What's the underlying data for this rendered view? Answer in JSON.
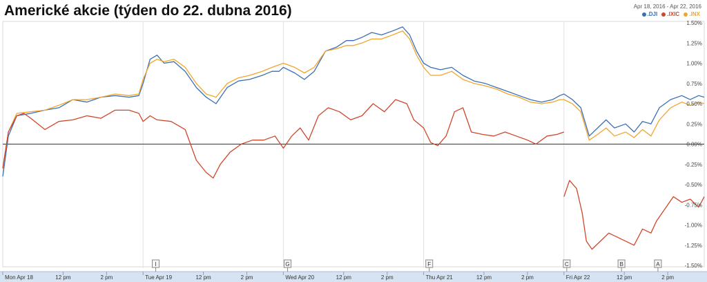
{
  "title": "Americké akcie (týden do 22. dubna 2016)",
  "date_range": "Apr 18, 2016  -  Apr 22, 2016",
  "legend": [
    {
      "label": ".DJI",
      "color": "#3a6fb5"
    },
    {
      "label": ".IXIC",
      "color": "#d0462a"
    },
    {
      "label": ".INX",
      "color": "#f2a52b"
    }
  ],
  "colors": {
    "dji": "#3a6fb5",
    "ixic": "#d0462a",
    "inx": "#f2a52b",
    "axis_bar": "#d6e3f2"
  },
  "chart_data": {
    "type": "line",
    "title": "Americké akcie (týden do 22. dubna 2016)",
    "ylim": [
      -1.5,
      1.5
    ],
    "yticks": [
      1.5,
      1.25,
      1.0,
      0.75,
      0.5,
      0.25,
      0.0,
      -0.25,
      -0.5,
      -0.75,
      -1.0,
      -1.25,
      -1.5
    ],
    "ytick_labels": [
      "1.50%",
      "1.25%",
      "1.00%",
      "0.75%",
      "0.50%",
      "0.25%",
      "0.00%",
      "-0.25%",
      "-0.50%",
      "-0.75%",
      "-1.00%",
      "-1.25%",
      "-1.50%"
    ],
    "xlim": [
      0,
      5
    ],
    "xticks": [
      {
        "x": 0.0,
        "label": "Mon Apr 18"
      },
      {
        "x": 0.43,
        "label": "12 pm"
      },
      {
        "x": 0.74,
        "label": "2 pm"
      },
      {
        "x": 1.0,
        "label": "Tue Apr 19"
      },
      {
        "x": 1.43,
        "label": "12 pm"
      },
      {
        "x": 1.74,
        "label": "2 pm"
      },
      {
        "x": 2.0,
        "label": "Wed Apr 20"
      },
      {
        "x": 2.43,
        "label": "12 pm"
      },
      {
        "x": 2.74,
        "label": "2 pm"
      },
      {
        "x": 3.0,
        "label": "Thu Apr 21"
      },
      {
        "x": 3.43,
        "label": "12 pm"
      },
      {
        "x": 3.74,
        "label": "2 pm"
      },
      {
        "x": 4.0,
        "label": "Fri Apr 22"
      },
      {
        "x": 4.43,
        "label": "12 pm"
      },
      {
        "x": 4.74,
        "label": "2 pm"
      }
    ],
    "markers": [
      {
        "x": 1.09,
        "label": "I"
      },
      {
        "x": 2.03,
        "label": "G"
      },
      {
        "x": 3.04,
        "label": "F"
      },
      {
        "x": 4.02,
        "label": "C"
      },
      {
        "x": 4.41,
        "label": "B"
      },
      {
        "x": 4.67,
        "label": "A"
      }
    ],
    "series": [
      {
        "name": ".DJI",
        "key": "dji",
        "points": [
          [
            0.0,
            -0.4
          ],
          [
            0.04,
            0.1
          ],
          [
            0.1,
            0.35
          ],
          [
            0.2,
            0.38
          ],
          [
            0.3,
            0.42
          ],
          [
            0.4,
            0.45
          ],
          [
            0.5,
            0.55
          ],
          [
            0.6,
            0.52
          ],
          [
            0.7,
            0.58
          ],
          [
            0.8,
            0.6
          ],
          [
            0.9,
            0.58
          ],
          [
            0.97,
            0.6
          ],
          [
            1.0,
            0.75
          ],
          [
            1.05,
            1.05
          ],
          [
            1.1,
            1.1
          ],
          [
            1.15,
            1.0
          ],
          [
            1.22,
            1.02
          ],
          [
            1.3,
            0.9
          ],
          [
            1.38,
            0.7
          ],
          [
            1.45,
            0.58
          ],
          [
            1.52,
            0.5
          ],
          [
            1.6,
            0.7
          ],
          [
            1.68,
            0.78
          ],
          [
            1.76,
            0.8
          ],
          [
            1.85,
            0.85
          ],
          [
            1.92,
            0.9
          ],
          [
            1.97,
            0.9
          ],
          [
            2.0,
            0.95
          ],
          [
            2.08,
            0.88
          ],
          [
            2.15,
            0.8
          ],
          [
            2.22,
            0.9
          ],
          [
            2.3,
            1.15
          ],
          [
            2.38,
            1.2
          ],
          [
            2.45,
            1.28
          ],
          [
            2.5,
            1.28
          ],
          [
            2.56,
            1.32
          ],
          [
            2.63,
            1.38
          ],
          [
            2.7,
            1.35
          ],
          [
            2.78,
            1.4
          ],
          [
            2.85,
            1.45
          ],
          [
            2.9,
            1.35
          ],
          [
            2.95,
            1.15
          ],
          [
            3.0,
            1.0
          ],
          [
            3.05,
            0.95
          ],
          [
            3.12,
            0.92
          ],
          [
            3.2,
            0.95
          ],
          [
            3.28,
            0.85
          ],
          [
            3.36,
            0.78
          ],
          [
            3.44,
            0.75
          ],
          [
            3.52,
            0.7
          ],
          [
            3.6,
            0.65
          ],
          [
            3.68,
            0.6
          ],
          [
            3.76,
            0.55
          ],
          [
            3.84,
            0.52
          ],
          [
            3.92,
            0.55
          ],
          [
            3.97,
            0.6
          ],
          [
            4.0,
            0.62
          ],
          [
            4.06,
            0.55
          ],
          [
            4.12,
            0.45
          ],
          [
            4.18,
            0.1
          ],
          [
            4.24,
            0.2
          ],
          [
            4.3,
            0.3
          ],
          [
            4.36,
            0.2
          ],
          [
            4.44,
            0.25
          ],
          [
            4.5,
            0.15
          ],
          [
            4.56,
            0.28
          ],
          [
            4.62,
            0.25
          ],
          [
            4.68,
            0.45
          ],
          [
            4.76,
            0.55
          ],
          [
            4.84,
            0.6
          ],
          [
            4.9,
            0.55
          ],
          [
            4.96,
            0.6
          ],
          [
            5.0,
            0.58
          ]
        ]
      },
      {
        "name": ".INX",
        "key": "inx",
        "points": [
          [
            0.0,
            -0.3
          ],
          [
            0.04,
            0.15
          ],
          [
            0.1,
            0.38
          ],
          [
            0.2,
            0.4
          ],
          [
            0.3,
            0.42
          ],
          [
            0.4,
            0.48
          ],
          [
            0.5,
            0.55
          ],
          [
            0.6,
            0.55
          ],
          [
            0.7,
            0.58
          ],
          [
            0.8,
            0.62
          ],
          [
            0.9,
            0.6
          ],
          [
            0.97,
            0.62
          ],
          [
            1.0,
            0.8
          ],
          [
            1.05,
            1.0
          ],
          [
            1.1,
            1.05
          ],
          [
            1.15,
            1.02
          ],
          [
            1.22,
            1.05
          ],
          [
            1.3,
            0.95
          ],
          [
            1.38,
            0.75
          ],
          [
            1.45,
            0.62
          ],
          [
            1.52,
            0.58
          ],
          [
            1.6,
            0.75
          ],
          [
            1.68,
            0.82
          ],
          [
            1.76,
            0.85
          ],
          [
            1.85,
            0.9
          ],
          [
            1.92,
            0.95
          ],
          [
            1.97,
            0.98
          ],
          [
            2.0,
            1.0
          ],
          [
            2.08,
            0.95
          ],
          [
            2.15,
            0.88
          ],
          [
            2.22,
            0.95
          ],
          [
            2.3,
            1.15
          ],
          [
            2.38,
            1.18
          ],
          [
            2.45,
            1.22
          ],
          [
            2.5,
            1.22
          ],
          [
            2.56,
            1.25
          ],
          [
            2.63,
            1.3
          ],
          [
            2.7,
            1.3
          ],
          [
            2.78,
            1.35
          ],
          [
            2.85,
            1.4
          ],
          [
            2.9,
            1.3
          ],
          [
            2.95,
            1.1
          ],
          [
            3.0,
            0.95
          ],
          [
            3.05,
            0.85
          ],
          [
            3.12,
            0.85
          ],
          [
            3.2,
            0.9
          ],
          [
            3.28,
            0.8
          ],
          [
            3.36,
            0.75
          ],
          [
            3.44,
            0.72
          ],
          [
            3.52,
            0.68
          ],
          [
            3.6,
            0.62
          ],
          [
            3.68,
            0.58
          ],
          [
            3.76,
            0.52
          ],
          [
            3.84,
            0.5
          ],
          [
            3.92,
            0.52
          ],
          [
            3.97,
            0.55
          ],
          [
            4.0,
            0.55
          ],
          [
            4.06,
            0.5
          ],
          [
            4.12,
            0.4
          ],
          [
            4.18,
            0.05
          ],
          [
            4.24,
            0.12
          ],
          [
            4.3,
            0.2
          ],
          [
            4.36,
            0.1
          ],
          [
            4.44,
            0.15
          ],
          [
            4.5,
            0.08
          ],
          [
            4.56,
            0.18
          ],
          [
            4.62,
            0.1
          ],
          [
            4.68,
            0.3
          ],
          [
            4.76,
            0.45
          ],
          [
            4.84,
            0.52
          ],
          [
            4.9,
            0.48
          ],
          [
            4.96,
            0.52
          ],
          [
            5.0,
            0.5
          ]
        ]
      },
      {
        "name": ".IXIC",
        "key": "ixic",
        "segments": [
          [
            [
              0.0,
              -0.3
            ],
            [
              0.04,
              0.15
            ],
            [
              0.1,
              0.35
            ],
            [
              0.15,
              0.38
            ],
            [
              0.2,
              0.32
            ],
            [
              0.3,
              0.18
            ],
            [
              0.4,
              0.28
            ],
            [
              0.5,
              0.3
            ],
            [
              0.6,
              0.35
            ],
            [
              0.7,
              0.32
            ],
            [
              0.8,
              0.42
            ],
            [
              0.9,
              0.42
            ],
            [
              0.97,
              0.38
            ],
            [
              1.0,
              0.28
            ],
            [
              1.05,
              0.35
            ],
            [
              1.1,
              0.3
            ],
            [
              1.2,
              0.28
            ],
            [
              1.3,
              0.18
            ],
            [
              1.38,
              -0.2
            ],
            [
              1.45,
              -0.35
            ],
            [
              1.5,
              -0.42
            ],
            [
              1.55,
              -0.25
            ],
            [
              1.62,
              -0.1
            ],
            [
              1.7,
              0.0
            ],
            [
              1.78,
              0.05
            ],
            [
              1.86,
              0.05
            ],
            [
              1.94,
              0.1
            ],
            [
              2.0,
              -0.05
            ],
            [
              2.06,
              0.1
            ],
            [
              2.12,
              0.2
            ],
            [
              2.18,
              0.05
            ],
            [
              2.25,
              0.35
            ],
            [
              2.32,
              0.45
            ],
            [
              2.4,
              0.4
            ],
            [
              2.48,
              0.3
            ],
            [
              2.56,
              0.35
            ],
            [
              2.64,
              0.5
            ],
            [
              2.72,
              0.4
            ],
            [
              2.8,
              0.55
            ],
            [
              2.88,
              0.5
            ],
            [
              2.93,
              0.3
            ],
            [
              3.0,
              0.2
            ],
            [
              3.05,
              0.02
            ],
            [
              3.1,
              -0.02
            ],
            [
              3.16,
              0.1
            ],
            [
              3.22,
              0.4
            ],
            [
              3.28,
              0.45
            ],
            [
              3.34,
              0.15
            ],
            [
              3.42,
              0.12
            ],
            [
              3.5,
              0.1
            ],
            [
              3.58,
              0.15
            ],
            [
              3.66,
              0.1
            ],
            [
              3.74,
              0.05
            ],
            [
              3.8,
              0.0
            ],
            [
              3.88,
              0.1
            ],
            [
              3.95,
              0.12
            ],
            [
              4.0,
              0.15
            ]
          ],
          [
            [
              4.0,
              -0.65
            ],
            [
              4.04,
              -0.45
            ],
            [
              4.09,
              -0.55
            ],
            [
              4.13,
              -0.85
            ],
            [
              4.16,
              -1.2
            ],
            [
              4.2,
              -1.3
            ],
            [
              4.26,
              -1.2
            ],
            [
              4.32,
              -1.1
            ],
            [
              4.38,
              -1.15
            ],
            [
              4.44,
              -1.2
            ],
            [
              4.5,
              -1.25
            ],
            [
              4.56,
              -1.05
            ],
            [
              4.62,
              -1.1
            ],
            [
              4.66,
              -0.95
            ],
            [
              4.72,
              -0.8
            ],
            [
              4.78,
              -0.65
            ],
            [
              4.84,
              -0.72
            ],
            [
              4.9,
              -0.68
            ],
            [
              4.96,
              -0.78
            ],
            [
              5.0,
              -0.65
            ]
          ]
        ]
      }
    ]
  }
}
